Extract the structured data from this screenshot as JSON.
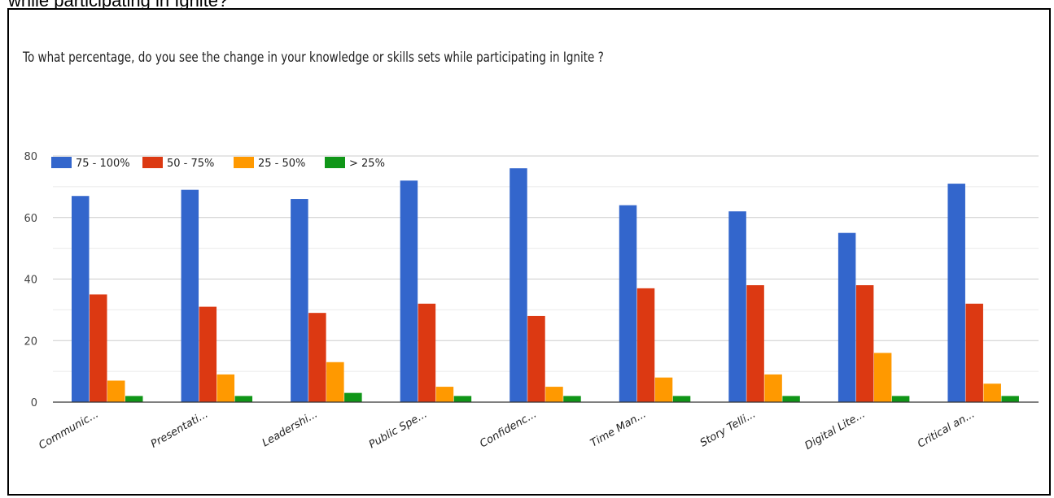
{
  "caption": "while participating in Ignite?",
  "chart_data": {
    "type": "bar",
    "title": "To what percentage, do you see the change in your knowledge or skills sets while participating in Ignite   ?",
    "xlabel": "",
    "ylabel": "",
    "categories": [
      "Communic...",
      "Presentati...",
      "Leadershi...",
      "Public Spe...",
      "Confidenc...",
      "Time Man...",
      "Story Telli...",
      "Digital Lite...",
      "Critical an..."
    ],
    "series": [
      {
        "name": "75 - 100%",
        "color": "#3366cc",
        "values": [
          67,
          69,
          66,
          72,
          76,
          64,
          62,
          55,
          71
        ]
      },
      {
        "name": "50 - 75%",
        "color": "#dc3912",
        "values": [
          35,
          31,
          29,
          32,
          28,
          37,
          38,
          38,
          32
        ]
      },
      {
        "name": "25 - 50%",
        "color": "#ff9900",
        "values": [
          7,
          9,
          13,
          5,
          5,
          8,
          9,
          16,
          6
        ]
      },
      {
        "name": "> 25%",
        "color": "#109618",
        "values": [
          2,
          2,
          3,
          2,
          2,
          2,
          2,
          2,
          2
        ]
      }
    ],
    "yticks": [
      "0",
      "20",
      "40",
      "60",
      "80"
    ],
    "ylim": [
      0,
      80
    ],
    "grid": true,
    "legend_position": "top-left"
  }
}
